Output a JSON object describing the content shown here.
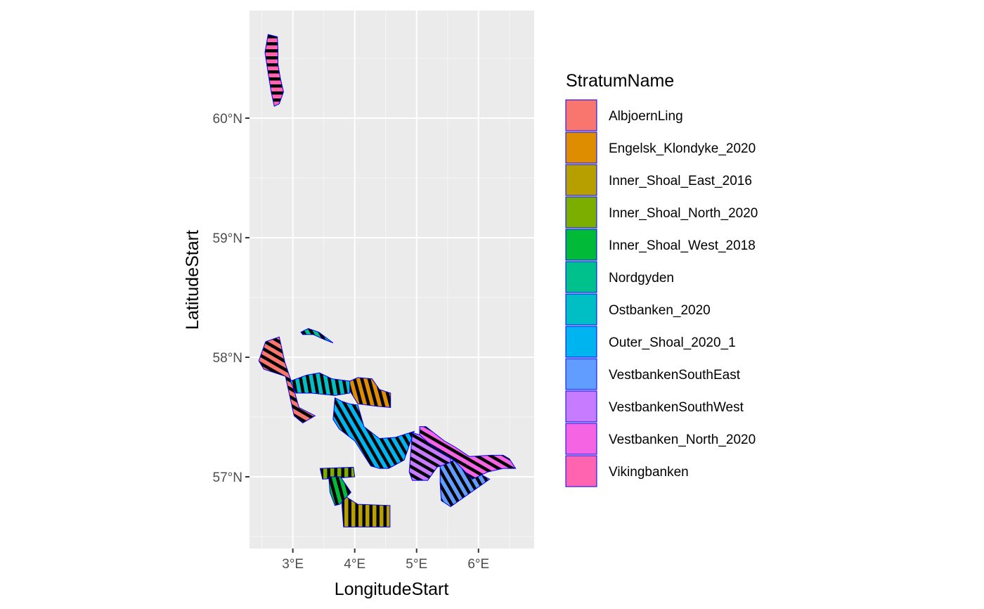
{
  "chart_data": {
    "type": "map",
    "xlabel": "LongitudeStart",
    "ylabel": "LatitudeStart",
    "xlim": [
      2.3,
      6.9
    ],
    "ylim": [
      56.4,
      60.9
    ],
    "x_ticks": [
      {
        "value": 3,
        "label": "3°E"
      },
      {
        "value": 4,
        "label": "4°E"
      },
      {
        "value": 5,
        "label": "5°E"
      },
      {
        "value": 6,
        "label": "6°E"
      }
    ],
    "y_ticks": [
      {
        "value": 57,
        "label": "57°N"
      },
      {
        "value": 58,
        "label": "58°N"
      },
      {
        "value": 59,
        "label": "59°N"
      },
      {
        "value": 60,
        "label": "60°N"
      }
    ],
    "grid": true,
    "panel_color": "#ebebeb",
    "outline_color": "#0000ff",
    "hatch_color": "#000000",
    "legend": {
      "title": "StratumName",
      "placement": "right"
    },
    "strata": [
      {
        "name": "AlbjoernLing",
        "color": "#F8766D",
        "hatch_angle": 30,
        "polygon": [
          [
            2.45,
            57.97
          ],
          [
            2.56,
            58.13
          ],
          [
            2.78,
            58.17
          ],
          [
            2.87,
            57.96
          ],
          [
            3.0,
            57.76
          ],
          [
            3.1,
            57.58
          ],
          [
            3.36,
            57.51
          ],
          [
            3.16,
            57.45
          ],
          [
            3.02,
            57.51
          ],
          [
            2.88,
            57.84
          ],
          [
            2.53,
            57.9
          ]
        ]
      },
      {
        "name": "Engelsk_Klondyke_2020",
        "color": "#DE8C00",
        "hatch_angle": 75,
        "polygon": [
          [
            3.92,
            57.8
          ],
          [
            4.05,
            57.83
          ],
          [
            4.28,
            57.82
          ],
          [
            4.4,
            57.73
          ],
          [
            4.58,
            57.7
          ],
          [
            4.58,
            57.58
          ],
          [
            4.36,
            57.59
          ],
          [
            4.05,
            57.61
          ],
          [
            3.92,
            57.72
          ]
        ]
      },
      {
        "name": "Inner_Shoal_East_2016",
        "color": "#B79F00",
        "hatch_angle": 90,
        "polygon": [
          [
            3.78,
            56.86
          ],
          [
            4.05,
            56.77
          ],
          [
            4.57,
            56.76
          ],
          [
            4.57,
            56.58
          ],
          [
            3.82,
            56.58
          ]
        ]
      },
      {
        "name": "Inner_Shoal_North_2020",
        "color": "#7CAE00",
        "hatch_angle": 90,
        "polygon": [
          [
            3.44,
            57.07
          ],
          [
            3.98,
            57.08
          ],
          [
            4.0,
            57.0
          ],
          [
            3.48,
            56.98
          ]
        ]
      },
      {
        "name": "Inner_Shoal_West_2018",
        "color": "#00BA38",
        "hatch_angle": 75,
        "polygon": [
          [
            3.58,
            57.0
          ],
          [
            3.77,
            57.0
          ],
          [
            3.94,
            56.87
          ],
          [
            3.76,
            56.77
          ],
          [
            3.68,
            56.76
          ],
          [
            3.6,
            56.87
          ]
        ]
      },
      {
        "name": "Nordgyden",
        "color": "#00C08B",
        "hatch_angle": 60,
        "polygon": [
          [
            3.13,
            58.21
          ],
          [
            3.25,
            58.24
          ],
          [
            3.42,
            58.21
          ],
          [
            3.65,
            58.12
          ],
          [
            3.5,
            58.15
          ],
          [
            3.33,
            58.19
          ],
          [
            3.16,
            58.19
          ]
        ]
      },
      {
        "name": "Ostbanken_2020",
        "color": "#00BFC4",
        "hatch_angle": 80,
        "polygon": [
          [
            2.96,
            57.8
          ],
          [
            3.22,
            57.85
          ],
          [
            3.43,
            57.87
          ],
          [
            3.63,
            57.82
          ],
          [
            3.92,
            57.8
          ],
          [
            3.92,
            57.7
          ],
          [
            3.68,
            57.68
          ],
          [
            3.3,
            57.7
          ],
          [
            3.05,
            57.7
          ]
        ]
      },
      {
        "name": "Outer_Shoal_2020_1",
        "color": "#00B4F0",
        "hatch_angle": 60,
        "polygon": [
          [
            3.68,
            57.66
          ],
          [
            3.8,
            57.63
          ],
          [
            3.92,
            57.61
          ],
          [
            4.05,
            57.6
          ],
          [
            4.15,
            57.42
          ],
          [
            4.4,
            57.32
          ],
          [
            4.66,
            57.33
          ],
          [
            4.96,
            57.38
          ],
          [
            4.8,
            57.14
          ],
          [
            4.55,
            57.07
          ],
          [
            4.4,
            57.07
          ],
          [
            4.26,
            57.09
          ],
          [
            4.0,
            57.3
          ],
          [
            3.75,
            57.4
          ],
          [
            3.65,
            57.48
          ]
        ]
      },
      {
        "name": "VestbankenSouthEast",
        "color": "#619CFF",
        "hatch_angle": 60,
        "polygon": [
          [
            5.38,
            57.1
          ],
          [
            5.62,
            57.14
          ],
          [
            6.18,
            56.98
          ],
          [
            5.55,
            56.75
          ],
          [
            5.4,
            56.8
          ],
          [
            5.38,
            56.94
          ]
        ]
      },
      {
        "name": "VestbankenSouthWest",
        "color": "#C77CFF",
        "hatch_angle": 30,
        "polygon": [
          [
            4.93,
            57.37
          ],
          [
            5.05,
            57.35
          ],
          [
            5.25,
            57.27
          ],
          [
            5.55,
            57.2
          ],
          [
            5.55,
            57.12
          ],
          [
            5.33,
            57.08
          ],
          [
            5.18,
            56.97
          ],
          [
            4.93,
            56.97
          ],
          [
            4.88,
            57.04
          ]
        ]
      },
      {
        "name": "Vestbanken_North_2020",
        "color": "#F564E3",
        "hatch_angle": 30,
        "polygon": [
          [
            5.05,
            57.42
          ],
          [
            5.15,
            57.42
          ],
          [
            5.45,
            57.3
          ],
          [
            5.62,
            57.25
          ],
          [
            5.85,
            57.17
          ],
          [
            6.2,
            57.18
          ],
          [
            6.4,
            57.18
          ],
          [
            6.5,
            57.15
          ],
          [
            6.6,
            57.07
          ],
          [
            6.4,
            57.07
          ],
          [
            6.15,
            57.04
          ],
          [
            5.9,
            56.98
          ],
          [
            5.62,
            57.13
          ],
          [
            5.42,
            57.2
          ],
          [
            5.2,
            57.28
          ],
          [
            5.05,
            57.35
          ]
        ]
      },
      {
        "name": "Vikingbanken",
        "color": "#FF64B0",
        "hatch_angle": 0,
        "polygon": [
          [
            2.6,
            60.7
          ],
          [
            2.75,
            60.68
          ],
          [
            2.76,
            60.58
          ],
          [
            2.76,
            60.45
          ],
          [
            2.8,
            60.33
          ],
          [
            2.85,
            60.22
          ],
          [
            2.78,
            60.12
          ],
          [
            2.7,
            60.1
          ],
          [
            2.65,
            60.22
          ],
          [
            2.6,
            60.38
          ],
          [
            2.55,
            60.55
          ]
        ]
      }
    ]
  }
}
